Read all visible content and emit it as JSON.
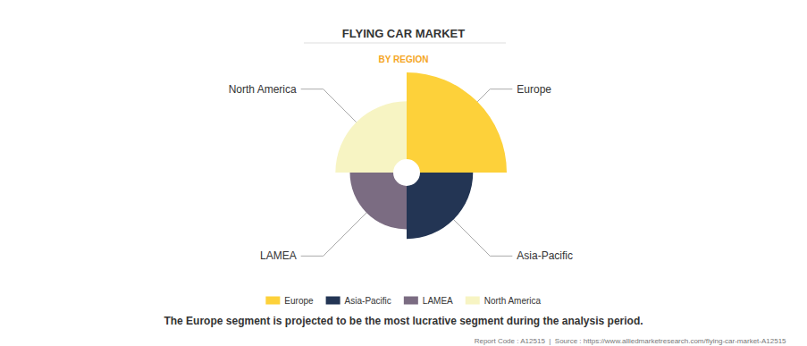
{
  "chart_data": {
    "type": "rose",
    "title": "FLYING CAR MARKET",
    "subtitle": "BY REGION",
    "categories": [
      "Europe",
      "Asia-Pacific",
      "LAMEA",
      "North America"
    ],
    "values": [
      36,
      22,
      18,
      24
    ],
    "colors": [
      "#fdd13a",
      "#233554",
      "#7b6c82",
      "#f7f4c3"
    ],
    "legend": "bottom",
    "annotations": [
      "The Europe segment is projected to be the most lucrative segment during the analysis period.",
      "Report Code : A12515  |  Source : https://www.alliedmarketresearch.com/flying-car-market-A12515"
    ]
  }
}
